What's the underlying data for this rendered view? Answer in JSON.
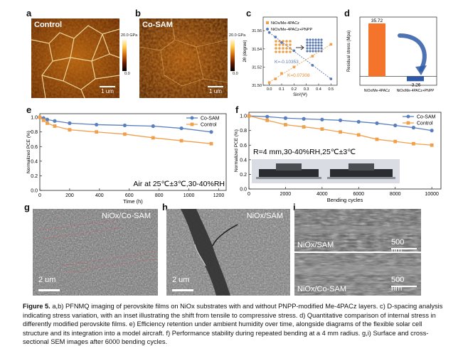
{
  "panels": {
    "a": {
      "letter": "a",
      "overlay": "Control",
      "scale": "1 um"
    },
    "b": {
      "letter": "b",
      "overlay": "Co-SAM",
      "scale": "1 um"
    },
    "colorbar": {
      "max": "20.0 GPa",
      "min": "0.0"
    },
    "c": {
      "letter": "c"
    },
    "d": {
      "letter": "d"
    },
    "e": {
      "letter": "e",
      "annotation": "Air at 25℃±3℃,30-40%RH"
    },
    "f": {
      "letter": "f",
      "annotation": "R=4 mm,30-40%RH,25℃±3℃"
    },
    "g": {
      "letter": "g",
      "label": "NiOx/Co-SAM",
      "scale": "2 um"
    },
    "h": {
      "letter": "h",
      "label": "NiOx/SAM",
      "scale": "2 um"
    },
    "i": {
      "letter": "i",
      "top_label": "NiOx/SAM",
      "bottom_label": "NiOx/Co-SAM",
      "scale_top": "500 nm",
      "scale_bottom": "500 nm"
    }
  },
  "chart_data": [
    {
      "id": "c",
      "type": "scatter",
      "xlabel": "Sin²(Ψ)",
      "ylabel": "2θ (degree)",
      "xlim": [
        -0.05,
        0.55
      ],
      "ylim": [
        31.5,
        31.575
      ],
      "xticks": [
        "0.0",
        "0.1",
        "0.2",
        "0.3",
        "0.4",
        "0.5"
      ],
      "yticks": [
        "31.50",
        "31.52",
        "31.54",
        "31.56"
      ],
      "series": [
        {
          "name": "NiOx/Me-4PACz",
          "color": "#f0a04b",
          "x": [
            0.0,
            0.05,
            0.1,
            0.2,
            0.35,
            0.5
          ],
          "y": [
            31.503,
            31.507,
            31.513,
            31.52,
            31.532,
            31.545
          ]
        },
        {
          "name": "NiOx/Me-4PACz+PNPP",
          "color": "#5a79b5",
          "x": [
            0.0,
            0.05,
            0.1,
            0.2,
            0.35,
            0.5
          ],
          "y": [
            31.558,
            31.553,
            31.547,
            31.538,
            31.522,
            31.507
          ]
        }
      ],
      "annotations": [
        "K=-0.10353",
        "K=0.07308"
      ]
    },
    {
      "id": "d",
      "type": "bar",
      "ylabel": "Residual stress (Mpa)",
      "categories": [
        "NiOx/Me-4PACz",
        "NiOx/Me-4PACz+PNPP"
      ],
      "values": [
        35.72,
        -3.26
      ],
      "value_labels": [
        "35.72",
        "-3.26"
      ],
      "colors": [
        "#f3742a",
        "#2f5aa8"
      ],
      "ylim": [
        -6,
        40
      ]
    },
    {
      "id": "e",
      "type": "line",
      "xlabel": "Time (h)",
      "ylabel": "Normalized PCE (%)",
      "xlim": [
        0,
        1250
      ],
      "ylim": [
        0.0,
        1.05
      ],
      "xticks": [
        0,
        200,
        400,
        600,
        800,
        1000,
        1200
      ],
      "yticks": [
        "0.0",
        "0.2",
        "0.4",
        "0.6",
        "0.8",
        "1.0"
      ],
      "series": [
        {
          "name": "Co-SAM",
          "color": "#5a7fbf",
          "marker": "circle",
          "x": [
            0,
            25,
            50,
            100,
            200,
            380,
            570,
            760,
            950,
            1150
          ],
          "y": [
            1.0,
            0.99,
            0.97,
            0.95,
            0.92,
            0.9,
            0.89,
            0.88,
            0.85,
            0.8
          ]
        },
        {
          "name": "Control",
          "color": "#f0a04b",
          "marker": "square",
          "x": [
            0,
            25,
            50,
            100,
            200,
            380,
            570,
            760,
            950,
            1150
          ],
          "y": [
            1.0,
            0.96,
            0.92,
            0.88,
            0.83,
            0.8,
            0.77,
            0.72,
            0.68,
            0.64
          ]
        }
      ]
    },
    {
      "id": "f",
      "type": "line",
      "xlabel": "Bending cycles",
      "ylabel": "Normalized PCE (%)",
      "xlim": [
        0,
        10500
      ],
      "ylim": [
        0.0,
        1.05
      ],
      "xticks": [
        0,
        2000,
        4000,
        6000,
        8000,
        10000
      ],
      "yticks": [
        "0.0",
        "0.2",
        "0.4",
        "0.6",
        "0.8",
        "1.0"
      ],
      "series": [
        {
          "name": "Co-SAM",
          "color": "#5a7fbf",
          "marker": "circle",
          "x": [
            0,
            1000,
            2000,
            3000,
            4000,
            5000,
            6000,
            7000,
            8000,
            9000,
            10000
          ],
          "y": [
            1.0,
            0.99,
            0.97,
            0.96,
            0.95,
            0.94,
            0.92,
            0.9,
            0.87,
            0.84,
            0.8
          ]
        },
        {
          "name": "Control",
          "color": "#f0a04b",
          "marker": "square",
          "x": [
            0,
            1000,
            2000,
            3000,
            4000,
            5000,
            6000,
            7000,
            8000,
            9000,
            10000
          ],
          "y": [
            1.0,
            0.94,
            0.88,
            0.85,
            0.82,
            0.78,
            0.74,
            0.68,
            0.65,
            0.62,
            0.6
          ]
        }
      ]
    }
  ],
  "caption": {
    "prefix": "Figure 5.",
    "text": "a,b) PFNMQ imaging of perovskite films on NiOx substrates with and without PNPP-modified Me-4PACz layers. c) D-spacing analysis indicating stress variation, with an inset illustrating the shift from tensile to compressive stress. d) Quantitative comparison of internal stress in differently modified perovskite films. e) Efficiency retention under ambient humidity over time, alongside diagrams of the flexible solar cell structure and its integration into a model aircraft. f) Performance stability during repeated bending at a 4 mm radius. g,i) Surface and cross-sectional SEM images after 6000 bending cycles."
  }
}
